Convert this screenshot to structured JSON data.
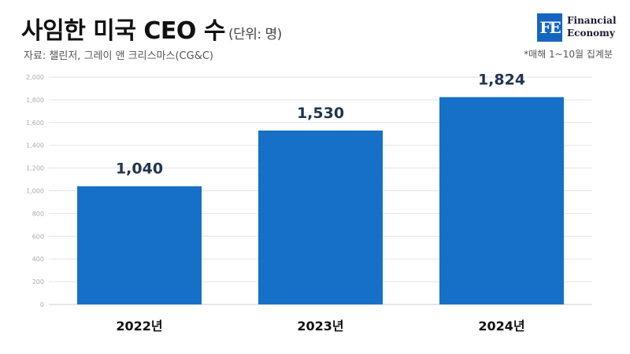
{
  "header": {
    "title": "사임한 미국 CEO 수",
    "unit": "(단위: 명)",
    "source": "자료: 챌린저, 그레이 앤 크리스마스(CG&C)",
    "note": "*매해 1~10월 집계분"
  },
  "logo": {
    "mark": "FE",
    "line1": "Financial",
    "line2": "Economy"
  },
  "chart_data": {
    "type": "bar",
    "title": "사임한 미국 CEO 수",
    "categories": [
      "2022년",
      "2023년",
      "2024년"
    ],
    "values": [
      1040,
      1530,
      1824
    ],
    "value_labels": [
      "1,040",
      "1,530",
      "1,824"
    ],
    "ylim": [
      0,
      2000
    ],
    "yticks": [
      0,
      200,
      400,
      600,
      800,
      1000,
      1200,
      1400,
      1600,
      1800,
      2000
    ],
    "ytick_labels": [
      "0",
      "200",
      "400",
      "600",
      "800",
      "1,000",
      "1,200",
      "1,400",
      "1,600",
      "1,800",
      "2,000"
    ],
    "grid": true,
    "bar_color": "#1670c8",
    "grid_color": "#e3e3e3"
  }
}
